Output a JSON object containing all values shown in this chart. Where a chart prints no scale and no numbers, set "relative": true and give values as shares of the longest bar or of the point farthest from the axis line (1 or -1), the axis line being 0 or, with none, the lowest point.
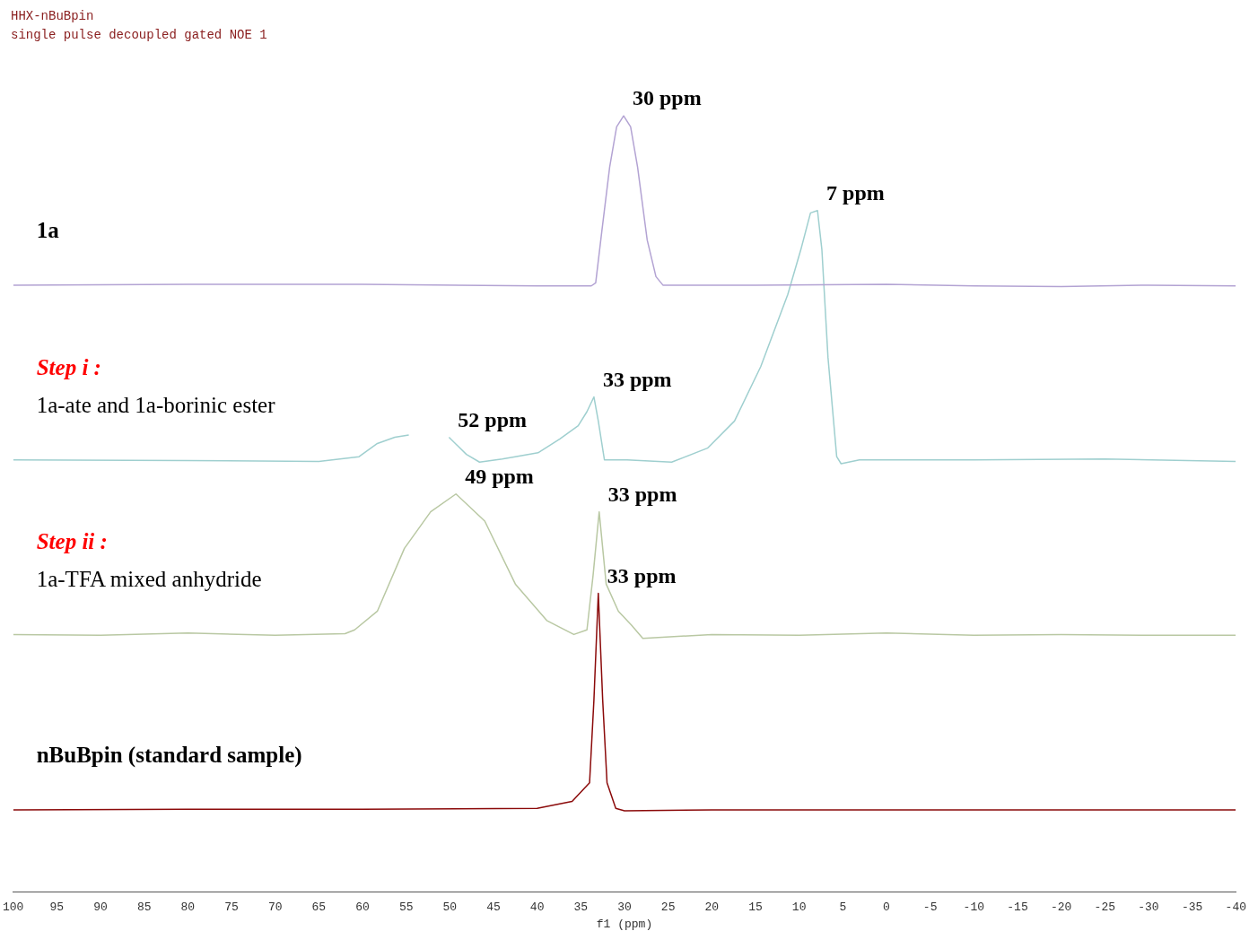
{
  "chart_data": {
    "type": "line",
    "title": "HHX-nBuBpin",
    "subtitle": "single pulse decoupled gated NOE 1",
    "xlabel": "f1 (ppm)",
    "relative": true,
    "legend": false,
    "grid": false,
    "xlim": [
      100,
      -40
    ],
    "xticks": [
      {
        "value": 100,
        "label": "100"
      },
      95,
      90,
      85,
      80,
      75,
      70,
      65,
      60,
      55,
      50,
      45,
      40,
      35,
      30,
      25,
      20,
      15,
      10,
      5,
      0,
      -5,
      -10,
      -15,
      -20,
      -25,
      -30,
      -35,
      -40
    ],
    "series": [
      {
        "name": "1a",
        "color": "#b3a3d3",
        "x": [
          100,
          80,
          60,
          40,
          33.8,
          33.3,
          32.6,
          31.7,
          30.9,
          30.1,
          29.3,
          28.5,
          27.4,
          26.4,
          25.6,
          15,
          0,
          -10,
          -20,
          -30,
          -40
        ],
        "values": [
          0.782,
          0.783,
          0.783,
          0.781,
          0.781,
          0.785,
          0.851,
          0.934,
          0.986,
          1,
          0.986,
          0.934,
          0.84,
          0.793,
          0.782,
          0.782,
          0.783,
          0.781,
          0.78,
          0.782,
          0.781
        ]
      },
      {
        "name": "Step i :\n1a-ate and 1a-borinic ester",
        "color": "#9fcfcf",
        "x": [
          100,
          80,
          65,
          60.4,
          58.3,
          56.3,
          54.7,
          52,
          50.1,
          48.1,
          46.6,
          44,
          39.9,
          37.4,
          35.3,
          34.3,
          33.5,
          33,
          32.3,
          29.7,
          24.6,
          20.5,
          17.4,
          14.4,
          11.3,
          9.8,
          8.7,
          7.9,
          7.4,
          6.7,
          5.7,
          5.2,
          3.1,
          -10,
          -25,
          -40
        ],
        "values": [
          0.557,
          0.556,
          0.555,
          0.561,
          0.578,
          0.586,
          0.589,
          null,
          0.586,
          0.564,
          0.554,
          0.558,
          0.566,
          0.584,
          0.601,
          0.619,
          0.638,
          0.607,
          0.557,
          0.557,
          0.554,
          0.572,
          0.607,
          0.677,
          0.77,
          0.828,
          0.875,
          0.878,
          0.828,
          0.689,
          0.561,
          0.552,
          0.557,
          0.557,
          0.558,
          0.555
        ]
      },
      {
        "name": "Step ii :\n1a-TFA mixed anhydride",
        "color": "#b9c8a3",
        "x": [
          100,
          90,
          80,
          70,
          62,
          60.9,
          58.3,
          55.2,
          52.2,
          49.3,
          46,
          42.5,
          38.9,
          35.8,
          34.3,
          33.6,
          32.9,
          32.1,
          30.7,
          29.2,
          27.9,
          20,
          10,
          0,
          -10,
          -20,
          -30,
          -40
        ],
        "values": [
          0.332,
          0.331,
          0.334,
          0.331,
          0.333,
          0.338,
          0.362,
          0.443,
          0.49,
          0.513,
          0.478,
          0.397,
          0.35,
          0.332,
          0.338,
          0.408,
          0.49,
          0.397,
          0.362,
          0.344,
          0.327,
          0.332,
          0.331,
          0.334,
          0.331,
          0.332,
          0.331,
          0.331
        ]
      },
      {
        "name": "nBuBpin (standard sample)",
        "color": "#8b0a0a",
        "x": [
          100,
          80,
          60,
          40,
          36,
          34,
          33.5,
          33,
          32.5,
          32,
          31,
          30,
          20,
          0,
          -20,
          -40
        ],
        "values": [
          0.106,
          0.107,
          0.107,
          0.108,
          0.117,
          0.141,
          0.248,
          0.385,
          0.248,
          0.141,
          0.108,
          0.105,
          0.106,
          0.106,
          0.106,
          0.106
        ]
      }
    ],
    "annotations": [
      {
        "text": "30 ppm",
        "x": 30.1,
        "y": 1
      },
      {
        "text": "7 ppm",
        "x": 7.9,
        "y": 0.878
      },
      {
        "text": "33 ppm",
        "x": 33.5,
        "y": 0.638
      },
      {
        "text": "52 ppm",
        "x": 50.1,
        "y": 0.586
      },
      {
        "text": "49 ppm",
        "x": 49.3,
        "y": 0.513
      },
      {
        "text": "33 ppm",
        "x": 32.9,
        "y": 0.49
      },
      {
        "text": "33 ppm",
        "x": 33,
        "y": 0.385
      }
    ]
  }
}
